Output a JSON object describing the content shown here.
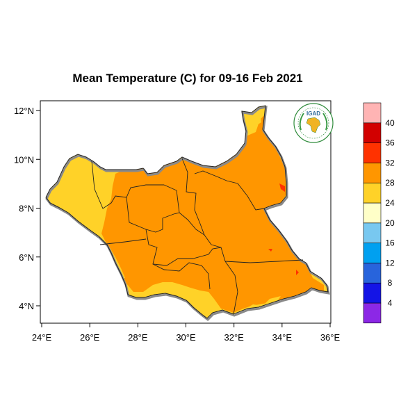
{
  "title": "Mean Temperature (C) for 09-16 Feb 2021",
  "logo": {
    "text": "IGAD"
  },
  "map": {
    "lon_range": [
      24,
      36
    ],
    "lat_range": [
      3.3,
      12.3
    ],
    "x_ticks": [
      {
        "value": 24,
        "label": "24°E"
      },
      {
        "value": 26,
        "label": "26°E"
      },
      {
        "value": 28,
        "label": "28°E"
      },
      {
        "value": 30,
        "label": "30°E"
      },
      {
        "value": 32,
        "label": "32°E"
      },
      {
        "value": 34,
        "label": "34°E"
      },
      {
        "value": 36,
        "label": "36°E"
      }
    ],
    "y_ticks": [
      {
        "value": 4,
        "label": "4°N"
      },
      {
        "value": 6,
        "label": "6°N"
      },
      {
        "value": 8,
        "label": "8°N"
      },
      {
        "value": 10,
        "label": "10°N"
      },
      {
        "value": 12,
        "label": "12°N"
      }
    ]
  },
  "colorbar": {
    "colors": [
      "#8c28e6",
      "#1414e6",
      "#2864dc",
      "#00a0f0",
      "#78c8f0",
      "#ffffc8",
      "#ffd228",
      "#ff9600",
      "#ff3200",
      "#d20000",
      "#ffb4b4"
    ],
    "labels": [
      "4",
      "8",
      "12",
      "16",
      "20",
      "24",
      "28",
      "32",
      "36",
      "40"
    ]
  },
  "colors": {
    "class_24_28": "#ffd228",
    "class_28_32": "#ff9600",
    "class_32_36": "#ff3200"
  }
}
